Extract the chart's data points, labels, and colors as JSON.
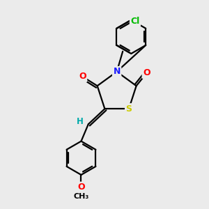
{
  "background_color": "#ebebeb",
  "atom_colors": {
    "C": "#000000",
    "N": "#1a1aff",
    "O": "#ff0000",
    "S": "#cccc00",
    "Cl": "#00bb00",
    "H": "#00aaaa"
  },
  "line_color": "#000000",
  "line_width": 1.6
}
